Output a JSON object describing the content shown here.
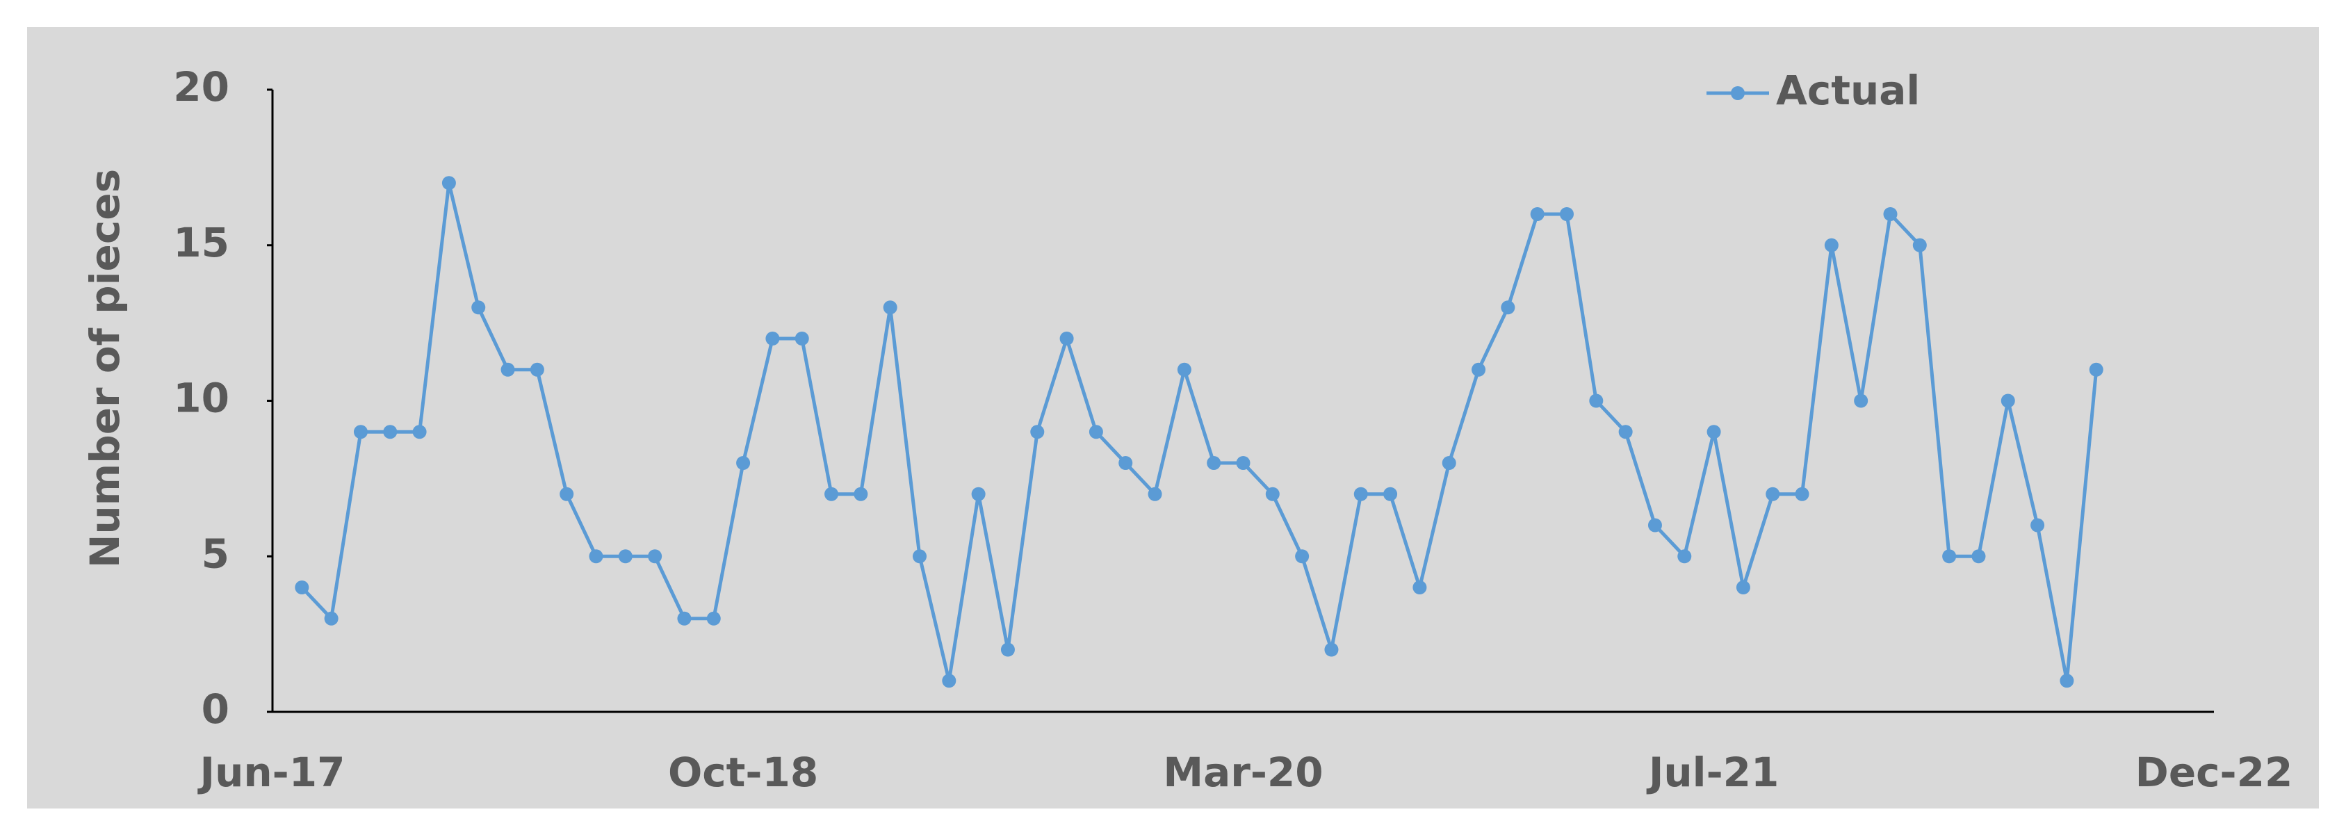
{
  "chart_data": {
    "type": "line",
    "y_label": "Number of pieces",
    "x": [
      "Jul-17",
      "Aug-17",
      "Sep-17",
      "Oct-17",
      "Nov-17",
      "Dec-17",
      "Jan-18",
      "Feb-18",
      "Mar-18",
      "Apr-18",
      "May-18",
      "Jun-18",
      "Jul-18",
      "Aug-18",
      "Sep-18",
      "Oct-18",
      "Nov-18",
      "Dec-18",
      "Jan-19",
      "Feb-19",
      "Mar-19",
      "Apr-19",
      "May-19",
      "Jun-19",
      "Jul-19",
      "Aug-19",
      "Sep-19",
      "Oct-19",
      "Nov-19",
      "Dec-19",
      "Jan-20",
      "Feb-20",
      "Mar-20",
      "Apr-20",
      "May-20",
      "Jun-20",
      "Jul-20",
      "Aug-20",
      "Sep-20",
      "Oct-20",
      "Nov-20",
      "Dec-20",
      "Jan-21",
      "Feb-21",
      "Mar-21",
      "Apr-21",
      "May-21",
      "Jun-21",
      "Jul-21",
      "Aug-21",
      "Sep-21",
      "Oct-21",
      "Nov-21",
      "Dec-21",
      "Jan-22",
      "Feb-22",
      "Mar-22",
      "Apr-22",
      "May-22",
      "Jun-22",
      "Jul-22",
      "Aug-22"
    ],
    "series": [
      {
        "name": "Actual",
        "color": "#5b9bd5",
        "values": [
          4,
          3,
          9,
          9,
          9,
          17,
          13,
          11,
          11,
          7,
          5,
          5,
          5,
          3,
          3,
          8,
          12,
          12,
          7,
          7,
          13,
          5,
          1,
          7,
          2,
          9,
          12,
          9,
          8,
          7,
          11,
          8,
          8,
          7,
          5,
          2,
          7,
          7,
          4,
          8,
          11,
          13,
          16,
          16,
          10,
          9,
          6,
          5,
          9,
          4,
          7,
          7,
          15,
          10,
          16,
          15,
          5,
          5,
          10,
          6,
          1,
          11
        ]
      }
    ],
    "xlim": [
      "Jun-17",
      "Dec-22"
    ],
    "xticks": [
      "Jun-17",
      "Oct-18",
      "Mar-20",
      "Jul-21",
      "Dec-22"
    ],
    "ylim": [
      0,
      20
    ],
    "yticks": [
      0,
      5,
      10,
      15,
      20
    ],
    "grid": false,
    "legend": "top-right"
  }
}
